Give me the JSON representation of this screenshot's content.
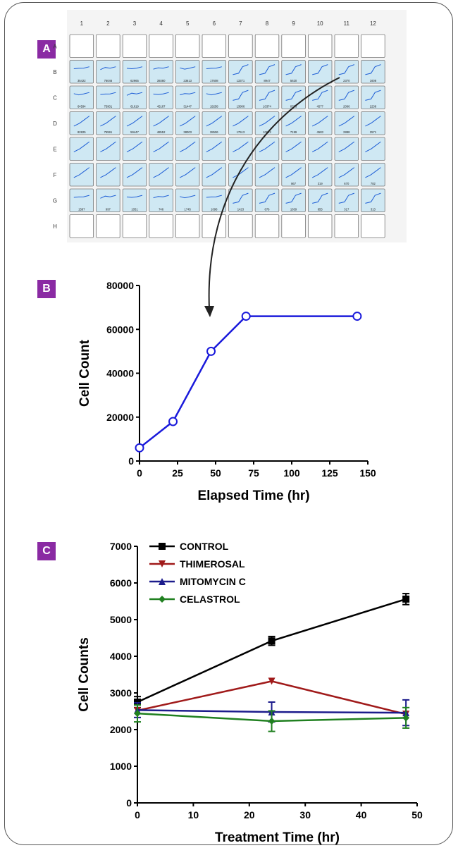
{
  "panels": {
    "a": {
      "label": "A"
    },
    "b": {
      "label": "B"
    },
    "c": {
      "label": "C"
    }
  },
  "plate": {
    "columns": [
      "1",
      "2",
      "3",
      "4",
      "5",
      "6",
      "7",
      "8",
      "9",
      "10",
      "11",
      "12"
    ],
    "rows": [
      "A",
      "B",
      "C",
      "D",
      "E",
      "F",
      "G",
      "H"
    ],
    "empty_rows": [
      "A",
      "H"
    ],
    "counts": {
      "B": [
        "35422",
        "76046",
        "62965",
        "39380",
        "23613",
        "17608",
        "13371",
        "8947",
        "5620",
        "",
        "2370",
        "1608"
      ],
      "C": [
        "64594",
        "75901",
        "61619",
        "45187",
        "31447",
        "19258",
        "13806",
        "10374",
        "8773",
        "4577",
        "2066",
        "2238"
      ],
      "D": [
        "82825",
        "75591",
        "59447",
        "48552",
        "38003",
        "28506",
        "17513",
        "10822",
        "7199",
        "4583",
        "2888",
        "2571"
      ],
      "E": [
        "",
        "",
        "",
        "",
        "",
        "",
        "",
        "",
        "",
        "",
        "",
        ""
      ],
      "F": [
        "",
        "",
        "",
        "",
        "",
        "",
        "",
        "",
        "867",
        "319",
        "670",
        "782"
      ],
      "G": [
        "1587",
        "997",
        "1051",
        "746",
        "1745",
        "1098",
        "1423",
        "676",
        "1839",
        "855",
        "317",
        "313"
      ]
    },
    "cell_fill": "#cfe8f3",
    "line_color": "#1f5fd6"
  },
  "chart_data": [
    {
      "type": "line",
      "panel": "B",
      "x": [
        0,
        22,
        47,
        70,
        143
      ],
      "series": [
        {
          "values": [
            6000,
            18000,
            50000,
            66000,
            66000
          ],
          "color": "#1a1adb",
          "marker": "open-circle"
        }
      ],
      "xlabel": "Elapsed Time (hr)",
      "ylabel": "Cell Count",
      "xlim": [
        0,
        150
      ],
      "ylim": [
        0,
        80000
      ],
      "xticks": [
        0,
        25,
        50,
        75,
        100,
        125,
        150
      ],
      "yticks": [
        0,
        20000,
        40000,
        60000,
        80000
      ],
      "grid": false
    },
    {
      "type": "line",
      "panel": "C",
      "x": [
        0,
        24,
        48
      ],
      "series": [
        {
          "name": "CONTROL",
          "values": [
            2750,
            4420,
            5560
          ],
          "errors": [
            150,
            120,
            150
          ],
          "color": "#000000",
          "marker": "square"
        },
        {
          "name": "THIMEROSAL",
          "values": [
            2520,
            3320,
            2420
          ],
          "errors": [
            0,
            0,
            0
          ],
          "color": "#a01a1a",
          "marker": "triangle-down"
        },
        {
          "name": "MITOMYCIN C",
          "values": [
            2530,
            2480,
            2460
          ],
          "errors": [
            200,
            270,
            350
          ],
          "color": "#1c1c8c",
          "marker": "triangle-up"
        },
        {
          "name": "CELASTROL",
          "values": [
            2440,
            2230,
            2320
          ],
          "errors": [
            230,
            280,
            280
          ],
          "color": "#208020",
          "marker": "diamond"
        }
      ],
      "xlabel": "Treatment Time (hr)",
      "ylabel": "Cell Counts",
      "xlim": [
        0,
        50
      ],
      "ylim": [
        0,
        7000
      ],
      "xticks": [
        0,
        10,
        20,
        30,
        40,
        50
      ],
      "yticks": [
        0,
        1000,
        2000,
        3000,
        4000,
        5000,
        6000,
        7000
      ],
      "legend": "top-left",
      "grid": false
    }
  ]
}
